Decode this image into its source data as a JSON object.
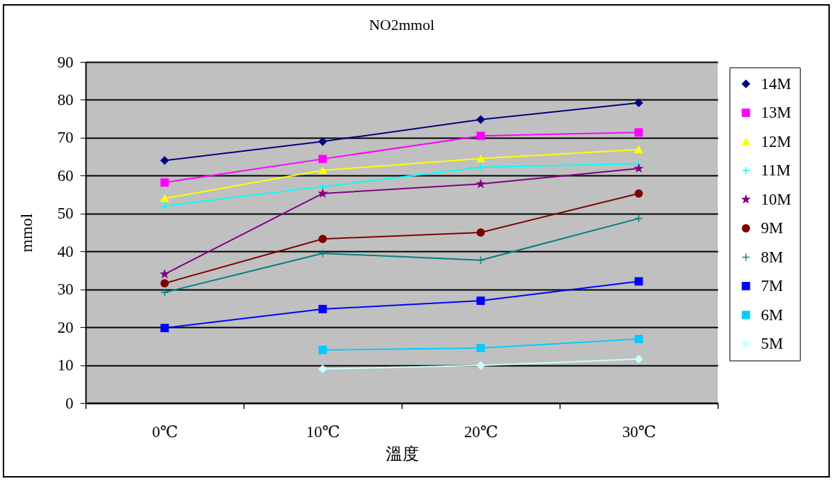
{
  "chart_data": {
    "type": "line",
    "title": "NO2mmol",
    "xlabel": "溫度",
    "ylabel": "mmol",
    "categories": [
      "0℃",
      "10℃",
      "20℃",
      "30℃"
    ],
    "series": [
      {
        "name": "14M",
        "color": "#000080",
        "marker": "diamond",
        "values": [
          64,
          69,
          74.8,
          79.2
        ]
      },
      {
        "name": "13M",
        "color": "#ff00ff",
        "marker": "square",
        "values": [
          58.2,
          64.4,
          70.5,
          71.4
        ]
      },
      {
        "name": "12M",
        "color": "#ffff00",
        "marker": "triangle",
        "values": [
          54,
          61.4,
          64.5,
          66.9
        ]
      },
      {
        "name": "11M",
        "color": "#00ffff",
        "marker": "cross",
        "values": [
          52,
          57.1,
          62.2,
          63.2
        ]
      },
      {
        "name": "10M",
        "color": "#800080",
        "marker": "star",
        "values": [
          34,
          55.3,
          57.8,
          61.9
        ]
      },
      {
        "name": "9M",
        "color": "#800000",
        "marker": "circle",
        "values": [
          31.6,
          43.3,
          45,
          55.3
        ]
      },
      {
        "name": "8M",
        "color": "#008080",
        "marker": "cross",
        "values": [
          29.2,
          39.5,
          37.7,
          48.7
        ]
      },
      {
        "name": "7M",
        "color": "#0000ff",
        "marker": "square",
        "values": [
          19.8,
          24.8,
          27,
          32.1
        ]
      },
      {
        "name": "6M",
        "color": "#00ccff",
        "marker": "square",
        "values": [
          null,
          14,
          14.5,
          16.9
        ]
      },
      {
        "name": "5M",
        "color": "#ccffff",
        "marker": "diamond",
        "values": [
          null,
          9,
          9.9,
          11.6
        ]
      }
    ],
    "ylim": [
      0,
      90
    ],
    "yticks": [
      0,
      10,
      20,
      30,
      40,
      50,
      60,
      70,
      80,
      90
    ],
    "grid": "y",
    "legend": "right"
  }
}
